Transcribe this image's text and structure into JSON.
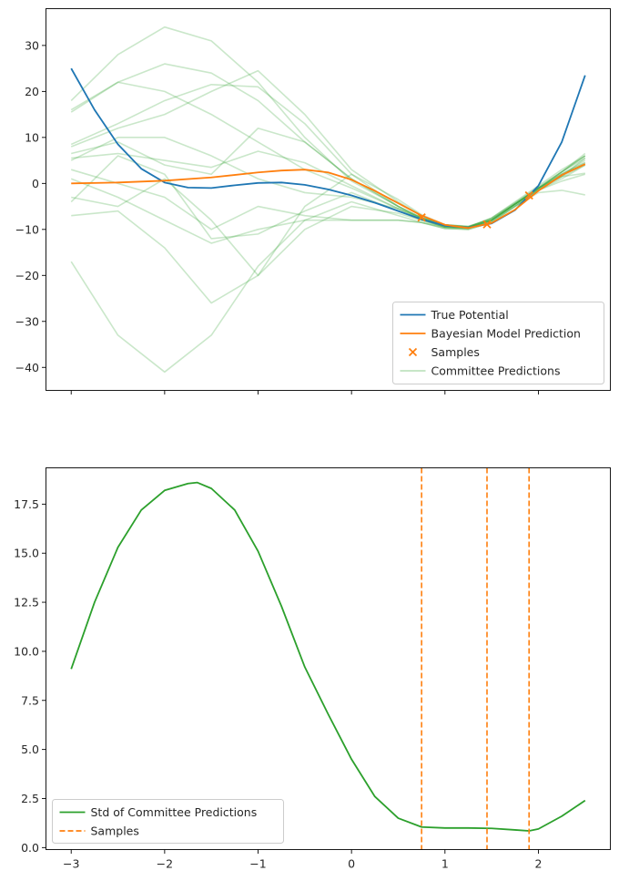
{
  "chart_data": [
    {
      "type": "line",
      "xlim": [
        -3.27,
        2.77
      ],
      "ylim": [
        -45,
        38
      ],
      "yticks": [
        -40,
        -30,
        -20,
        -10,
        0,
        10,
        20,
        30
      ],
      "ytick_labels": [
        "−40",
        "−30",
        "−20",
        "−10",
        "0",
        "10",
        "20",
        "30"
      ],
      "xticks": [
        -3,
        -2,
        -1,
        0,
        1,
        2
      ],
      "xtick_labels": [
        "",
        "",
        "",
        "",
        "",
        ""
      ],
      "legend_position": "lower-right",
      "legend": [
        {
          "label": "True Potential",
          "kind": "line",
          "color": "#1f77b4"
        },
        {
          "label": "Bayesian Model Prediction",
          "kind": "line",
          "color": "#ff7f0e"
        },
        {
          "label": "Samples",
          "kind": "marker-x",
          "color": "#ff7f0e"
        },
        {
          "label": "Committee Predictions",
          "kind": "line-faint",
          "color": "#2ca02c"
        }
      ],
      "true_potential": {
        "color": "#1f77b4",
        "x": [
          -3.0,
          -2.75,
          -2.5,
          -2.25,
          -2.0,
          -1.75,
          -1.5,
          -1.25,
          -1.0,
          -0.75,
          -0.5,
          -0.25,
          0.0,
          0.25,
          0.5,
          0.75,
          1.0,
          1.25,
          1.5,
          1.75,
          2.0,
          2.25,
          2.5
        ],
        "y": [
          25.0,
          16.0,
          8.5,
          3.2,
          0.2,
          -0.9,
          -1.0,
          -0.4,
          0.1,
          0.2,
          -0.3,
          -1.3,
          -2.6,
          -4.2,
          -6.0,
          -7.8,
          -9.2,
          -9.6,
          -8.7,
          -5.8,
          -0.5,
          9.0,
          23.5
        ]
      },
      "bayesian_prediction": {
        "color": "#ff7f0e",
        "x": [
          -3.0,
          -2.5,
          -2.0,
          -1.5,
          -1.0,
          -0.75,
          -0.5,
          -0.25,
          0.0,
          0.25,
          0.5,
          0.75,
          1.0,
          1.25,
          1.5,
          1.75,
          2.0,
          2.25,
          2.5
        ],
        "y": [
          0.0,
          0.2,
          0.6,
          1.3,
          2.4,
          2.8,
          3.0,
          2.4,
          0.8,
          -1.6,
          -4.3,
          -7.0,
          -9.0,
          -9.7,
          -8.6,
          -5.7,
          -1.6,
          1.8,
          4.2
        ]
      },
      "samples": {
        "color": "#ff7f0e",
        "x": [
          0.75,
          1.45,
          1.9
        ],
        "y": [
          -7.4,
          -8.9,
          -2.6
        ]
      },
      "committee": {
        "color": "#2ca02c",
        "opacity": 0.25,
        "x": [
          -3.0,
          -2.5,
          -2.0,
          -1.5,
          -1.0,
          -0.5,
          0.0,
          0.5,
          0.75,
          1.0,
          1.25,
          1.5,
          1.75,
          2.0,
          2.25,
          2.5
        ],
        "members": [
          [
            18.0,
            28.0,
            34.0,
            31.0,
            22.0,
            10.0,
            0.5,
            -5.0,
            -7.8,
            -9.5,
            -9.5,
            -7.5,
            -4.0,
            -0.5,
            3.0,
            6.0
          ],
          [
            15.5,
            22.0,
            26.0,
            24.0,
            18.0,
            9.0,
            1.0,
            -5.0,
            -7.5,
            -9.2,
            -9.5,
            -7.5,
            -4.2,
            -0.8,
            2.5,
            5.5
          ],
          [
            16.0,
            22.0,
            20.0,
            15.0,
            9.0,
            3.0,
            -1.0,
            -5.5,
            -7.5,
            -9.0,
            -9.3,
            -7.8,
            -4.5,
            -1.2,
            2.0,
            5.0
          ],
          [
            8.0,
            12.0,
            15.0,
            20.0,
            24.5,
            15.0,
            3.0,
            -4.0,
            -7.0,
            -9.0,
            -9.4,
            -7.6,
            -4.3,
            -1.0,
            2.0,
            4.5
          ],
          [
            8.5,
            13.0,
            18.0,
            21.5,
            21.0,
            13.0,
            2.0,
            -5.0,
            -7.5,
            -9.3,
            -9.6,
            -8.0,
            -4.5,
            -1.2,
            1.5,
            4.0
          ],
          [
            5.5,
            6.5,
            5.0,
            3.5,
            7.0,
            4.5,
            -0.5,
            -5.5,
            -7.8,
            -9.5,
            -9.7,
            -8.0,
            -4.5,
            -1.5,
            0.5,
            2.0
          ],
          [
            5.0,
            10.0,
            10.0,
            6.0,
            1.0,
            -2.0,
            -3.0,
            -5.5,
            -7.5,
            -9.0,
            -9.4,
            -7.8,
            -4.5,
            -1.0,
            1.5,
            2.2
          ],
          [
            6.5,
            9.0,
            4.0,
            2.0,
            12.0,
            9.0,
            1.0,
            -5.0,
            -7.4,
            -9.0,
            -9.5,
            -8.0,
            -4.8,
            -1.5,
            1.0,
            4.0
          ],
          [
            3.0,
            0.0,
            -3.0,
            -10.0,
            -5.0,
            -7.0,
            -8.0,
            -8.0,
            -8.5,
            -9.8,
            -10.0,
            -8.5,
            -5.0,
            -1.5,
            1.5,
            5.5
          ],
          [
            -3.0,
            -5.0,
            1.0,
            -8.0,
            -20.0,
            -10.0,
            -5.0,
            -6.5,
            -8.0,
            -9.5,
            -9.8,
            -8.2,
            -4.5,
            -1.0,
            2.5,
            6.5
          ],
          [
            -17.0,
            -33.0,
            -41.0,
            -33.0,
            -18.0,
            -8.0,
            -4.0,
            -7.0,
            -8.5,
            -9.8,
            -10.0,
            -8.5,
            -5.0,
            -1.2,
            2.5,
            6.0
          ],
          [
            -7.0,
            -6.0,
            -14.0,
            -26.0,
            -20.0,
            -5.0,
            2.0,
            -3.5,
            -6.8,
            -9.0,
            -9.5,
            -8.0,
            -4.5,
            -1.0,
            2.5,
            6.0
          ],
          [
            -4.0,
            6.0,
            2.0,
            -12.0,
            -11.0,
            -6.0,
            -2.0,
            -6.0,
            -8.0,
            -9.5,
            -9.8,
            -8.0,
            -4.5,
            -1.0,
            2.0,
            4.5
          ],
          [
            1.0,
            -3.0,
            -8.0,
            -13.0,
            -10.0,
            -8.0,
            -8.0,
            -8.0,
            -8.5,
            -9.5,
            -9.7,
            -8.2,
            -5.0,
            -2.0,
            -1.5,
            -2.5
          ]
        ]
      }
    },
    {
      "type": "line",
      "xlim": [
        -3.27,
        2.77
      ],
      "ylim": [
        -0.1,
        19.35
      ],
      "yticks": [
        0.0,
        2.5,
        5.0,
        7.5,
        10.0,
        12.5,
        15.0,
        17.5
      ],
      "ytick_labels": [
        "0.0",
        "2.5",
        "5.0",
        "7.5",
        "10.0",
        "12.5",
        "15.0",
        "17.5"
      ],
      "xticks": [
        -3,
        -2,
        -1,
        0,
        1,
        2
      ],
      "xtick_labels": [
        "−3",
        "−2",
        "−1",
        "0",
        "1",
        "2"
      ],
      "legend_position": "lower-left",
      "legend": [
        {
          "label": "Std of Committee Predictions",
          "kind": "line",
          "color": "#2ca02c"
        },
        {
          "label": "Samples",
          "kind": "dashed",
          "color": "#ff7f0e"
        }
      ],
      "std": {
        "color": "#2ca02c",
        "x": [
          -3.0,
          -2.75,
          -2.5,
          -2.25,
          -2.0,
          -1.75,
          -1.65,
          -1.5,
          -1.25,
          -1.0,
          -0.75,
          -0.5,
          -0.25,
          0.0,
          0.25,
          0.5,
          0.75,
          1.0,
          1.25,
          1.5,
          1.75,
          1.9,
          2.0,
          2.25,
          2.5
        ],
        "y": [
          9.1,
          12.5,
          15.3,
          17.2,
          18.2,
          18.55,
          18.6,
          18.3,
          17.2,
          15.1,
          12.3,
          9.2,
          6.8,
          4.5,
          2.6,
          1.5,
          1.05,
          1.0,
          1.0,
          0.98,
          0.9,
          0.85,
          0.95,
          1.6,
          2.4
        ]
      },
      "sample_lines": {
        "color": "#ff7f0e",
        "x": [
          0.75,
          1.45,
          1.9
        ]
      }
    }
  ]
}
